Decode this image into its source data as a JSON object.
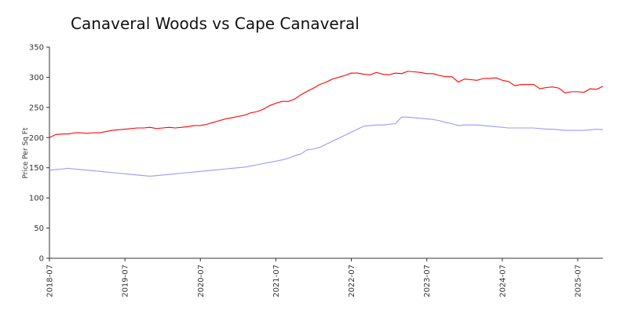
{
  "chart_data": {
    "type": "line",
    "title": "Canaveral Woods vs Cape Canaveral",
    "xlabel": "",
    "ylabel": "Price Per Sq Ft",
    "ylim": [
      0,
      350
    ],
    "yticks": [
      "0",
      "50",
      "100",
      "150",
      "200",
      "250",
      "300",
      "350"
    ],
    "xlim": [
      "2018-07",
      "2025-11"
    ],
    "xticks": [
      "2018-07",
      "2019-07",
      "2020-07",
      "2021-07",
      "2022-07",
      "2023-07",
      "2024-07",
      "2025-07"
    ],
    "grid": false,
    "legend": "none",
    "series": [
      {
        "color": "#ff0000",
        "points": [
          [
            "2018-07",
            200
          ],
          [
            "2018-08",
            205
          ],
          [
            "2018-09",
            206
          ],
          [
            "2018-10",
            206
          ],
          [
            "2018-11",
            208
          ],
          [
            "2018-12",
            208
          ],
          [
            "2019-01",
            207
          ],
          [
            "2019-02",
            208
          ],
          [
            "2019-03",
            208
          ],
          [
            "2019-04",
            210
          ],
          [
            "2019-05",
            212
          ],
          [
            "2019-06",
            213
          ],
          [
            "2019-07",
            214
          ],
          [
            "2019-08",
            215
          ],
          [
            "2019-09",
            216
          ],
          [
            "2019-10",
            216
          ],
          [
            "2019-11",
            217
          ],
          [
            "2019-12",
            215
          ],
          [
            "2020-01",
            216
          ],
          [
            "2020-02",
            217
          ],
          [
            "2020-03",
            216
          ],
          [
            "2020-04",
            217
          ],
          [
            "2020-05",
            218
          ],
          [
            "2020-06",
            220
          ],
          [
            "2020-07",
            220
          ],
          [
            "2020-08",
            222
          ],
          [
            "2020-09",
            225
          ],
          [
            "2020-10",
            228
          ],
          [
            "2020-11",
            231
          ],
          [
            "2020-12",
            233
          ],
          [
            "2021-01",
            235
          ],
          [
            "2021-02",
            237
          ],
          [
            "2021-03",
            241
          ],
          [
            "2021-04",
            243
          ],
          [
            "2021-05",
            247
          ],
          [
            "2021-06",
            253
          ],
          [
            "2021-07",
            257
          ],
          [
            "2021-08",
            260
          ],
          [
            "2021-09",
            260
          ],
          [
            "2021-10",
            264
          ],
          [
            "2021-11",
            271
          ],
          [
            "2021-12",
            277
          ],
          [
            "2022-01",
            282
          ],
          [
            "2022-02",
            288
          ],
          [
            "2022-03",
            292
          ],
          [
            "2022-04",
            297
          ],
          [
            "2022-05",
            300
          ],
          [
            "2022-06",
            303
          ],
          [
            "2022-07",
            307
          ],
          [
            "2022-08",
            307
          ],
          [
            "2022-09",
            305
          ],
          [
            "2022-10",
            304
          ],
          [
            "2022-11",
            308
          ],
          [
            "2022-12",
            305
          ],
          [
            "2023-01",
            304
          ],
          [
            "2023-02",
            307
          ],
          [
            "2023-03",
            306
          ],
          [
            "2023-04",
            310
          ],
          [
            "2023-05",
            309
          ],
          [
            "2023-06",
            308
          ],
          [
            "2023-07",
            306
          ],
          [
            "2023-08",
            306
          ],
          [
            "2023-09",
            303
          ],
          [
            "2023-10",
            301
          ],
          [
            "2023-11",
            301
          ],
          [
            "2023-12",
            292
          ],
          [
            "2024-01",
            297
          ],
          [
            "2024-02",
            296
          ],
          [
            "2024-03",
            295
          ],
          [
            "2024-04",
            298
          ],
          [
            "2024-05",
            298
          ],
          [
            "2024-06",
            299
          ],
          [
            "2024-07",
            295
          ],
          [
            "2024-08",
            293
          ],
          [
            "2024-09",
            286
          ],
          [
            "2024-10",
            288
          ],
          [
            "2024-11",
            288
          ],
          [
            "2024-12",
            288
          ],
          [
            "2025-01",
            281
          ],
          [
            "2025-02",
            283
          ],
          [
            "2025-03",
            284
          ],
          [
            "2025-04",
            282
          ],
          [
            "2025-05",
            274
          ],
          [
            "2025-06",
            276
          ],
          [
            "2025-07",
            276
          ],
          [
            "2025-08",
            275
          ],
          [
            "2025-09",
            281
          ],
          [
            "2025-10",
            280
          ],
          [
            "2025-11",
            285
          ]
        ]
      },
      {
        "color": "#9999ff",
        "points": [
          [
            "2018-07",
            146
          ],
          [
            "2018-08",
            147
          ],
          [
            "2018-09",
            148
          ],
          [
            "2018-10",
            149
          ],
          [
            "2018-11",
            148
          ],
          [
            "2018-12",
            147
          ],
          [
            "2019-01",
            146
          ],
          [
            "2019-02",
            145
          ],
          [
            "2019-03",
            144
          ],
          [
            "2019-04",
            143
          ],
          [
            "2019-05",
            142
          ],
          [
            "2019-06",
            141
          ],
          [
            "2019-07",
            140
          ],
          [
            "2019-08",
            139
          ],
          [
            "2019-09",
            138
          ],
          [
            "2019-10",
            137
          ],
          [
            "2019-11",
            136
          ],
          [
            "2019-12",
            137
          ],
          [
            "2020-01",
            138
          ],
          [
            "2020-02",
            139
          ],
          [
            "2020-03",
            140
          ],
          [
            "2020-04",
            141
          ],
          [
            "2020-05",
            142
          ],
          [
            "2020-06",
            143
          ],
          [
            "2020-07",
            144
          ],
          [
            "2020-08",
            145
          ],
          [
            "2020-09",
            146
          ],
          [
            "2020-10",
            147
          ],
          [
            "2020-11",
            148
          ],
          [
            "2020-12",
            149
          ],
          [
            "2021-01",
            150
          ],
          [
            "2021-02",
            151
          ],
          [
            "2021-03",
            153
          ],
          [
            "2021-04",
            155
          ],
          [
            "2021-05",
            157
          ],
          [
            "2021-06",
            159
          ],
          [
            "2021-07",
            161
          ],
          [
            "2021-08",
            163
          ],
          [
            "2021-09",
            166
          ],
          [
            "2021-10",
            170
          ],
          [
            "2021-11",
            173
          ],
          [
            "2021-12",
            180
          ],
          [
            "2022-01",
            181
          ],
          [
            "2022-02",
            184
          ],
          [
            "2022-03",
            189
          ],
          [
            "2022-04",
            194
          ],
          [
            "2022-05",
            199
          ],
          [
            "2022-06",
            204
          ],
          [
            "2022-07",
            209
          ],
          [
            "2022-08",
            214
          ],
          [
            "2022-09",
            219
          ],
          [
            "2022-10",
            220
          ],
          [
            "2022-11",
            221
          ],
          [
            "2022-12",
            221
          ],
          [
            "2023-01",
            222
          ],
          [
            "2023-02",
            223
          ],
          [
            "2023-03",
            234
          ],
          [
            "2023-04",
            234
          ],
          [
            "2023-05",
            233
          ],
          [
            "2023-06",
            232
          ],
          [
            "2023-07",
            231
          ],
          [
            "2023-08",
            230
          ],
          [
            "2023-09",
            228
          ],
          [
            "2023-10",
            225
          ],
          [
            "2023-11",
            223
          ],
          [
            "2023-12",
            220
          ],
          [
            "2024-01",
            221
          ],
          [
            "2024-02",
            221
          ],
          [
            "2024-03",
            221
          ],
          [
            "2024-04",
            220
          ],
          [
            "2024-05",
            219
          ],
          [
            "2024-06",
            218
          ],
          [
            "2024-07",
            217
          ],
          [
            "2024-08",
            216
          ],
          [
            "2024-09",
            216
          ],
          [
            "2024-10",
            216
          ],
          [
            "2024-11",
            216
          ],
          [
            "2024-12",
            216
          ],
          [
            "2025-01",
            215
          ],
          [
            "2025-02",
            214
          ],
          [
            "2025-03",
            214
          ],
          [
            "2025-04",
            213
          ],
          [
            "2025-05",
            212
          ],
          [
            "2025-06",
            212
          ],
          [
            "2025-07",
            212
          ],
          [
            "2025-08",
            212
          ],
          [
            "2025-09",
            213
          ],
          [
            "2025-10",
            214
          ],
          [
            "2025-11",
            213
          ]
        ]
      }
    ]
  }
}
